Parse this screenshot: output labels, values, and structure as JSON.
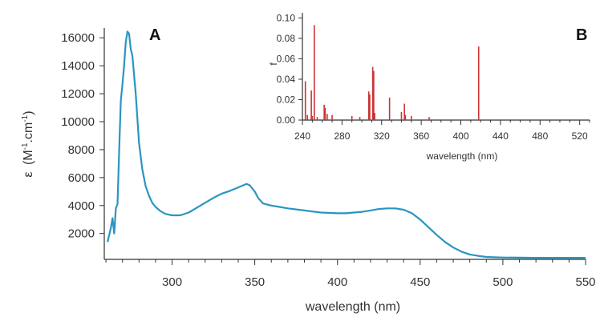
{
  "chart_data": [
    {
      "type": "line",
      "panel_label": "A",
      "xlabel": "wavelength (nm)",
      "ylabel_symbol": "ε",
      "ylabel_unit": "(M",
      "ylabel_sup1": "-1",
      "ylabel_mid": ".cm",
      "ylabel_sup2": "-1",
      "ylabel_end": ")",
      "xlim": [
        259,
        550
      ],
      "ylim": [
        150,
        16700
      ],
      "x_ticks": [
        "300",
        "350",
        "400",
        "450",
        "500",
        "550"
      ],
      "y_ticks": [
        "2000",
        "4000",
        "6000",
        "8000",
        "10000",
        "12000",
        "14000",
        "16000"
      ],
      "color": "#2a95c0",
      "x": [
        261,
        263,
        264,
        265,
        266,
        267,
        268,
        269,
        270,
        271,
        272,
        273,
        274,
        275,
        276,
        278,
        280,
        282,
        284,
        286,
        288,
        290,
        293,
        296,
        300,
        305,
        310,
        315,
        320,
        325,
        330,
        335,
        340,
        343,
        345,
        347,
        350,
        352,
        355,
        360,
        365,
        370,
        380,
        390,
        400,
        405,
        410,
        415,
        420,
        425,
        430,
        435,
        440,
        445,
        450,
        455,
        460,
        465,
        470,
        475,
        480,
        485,
        490,
        495,
        500,
        510,
        520,
        530,
        540,
        550
      ],
      "y": [
        1400,
        2400,
        3100,
        2000,
        3800,
        4100,
        8000,
        11500,
        12700,
        14000,
        15700,
        16450,
        16300,
        15200,
        14700,
        12000,
        8500,
        6600,
        5400,
        4700,
        4200,
        3900,
        3600,
        3400,
        3300,
        3300,
        3500,
        3850,
        4200,
        4550,
        4850,
        5050,
        5300,
        5450,
        5550,
        5450,
        5000,
        4550,
        4150,
        4000,
        3900,
        3800,
        3650,
        3500,
        3450,
        3450,
        3500,
        3550,
        3650,
        3750,
        3800,
        3800,
        3700,
        3450,
        3000,
        2450,
        1900,
        1400,
        1000,
        700,
        500,
        400,
        320,
        300,
        280,
        270,
        260,
        260,
        260,
        260
      ]
    },
    {
      "type": "bar",
      "panel_label": "B",
      "xlabel": "wavelength (nm)",
      "ylabel": "f",
      "xlim": [
        240,
        530
      ],
      "ylim": [
        0,
        0.105
      ],
      "x_ticks": [
        "240",
        "280",
        "320",
        "360",
        "400",
        "440",
        "480",
        "520"
      ],
      "y_ticks": [
        "0.00",
        "0.02",
        "0.04",
        "0.06",
        "0.08",
        "0.10"
      ],
      "color": "#cc3333",
      "x": [
        243,
        245,
        249,
        250,
        252,
        255,
        262,
        263,
        265,
        270,
        290,
        298,
        307,
        308,
        311,
        312,
        313,
        328,
        340,
        343,
        344,
        350,
        368,
        418
      ],
      "y": [
        0.038,
        0.005,
        0.029,
        0.004,
        0.093,
        0.003,
        0.015,
        0.012,
        0.006,
        0.005,
        0.004,
        0.003,
        0.028,
        0.025,
        0.052,
        0.048,
        0.007,
        0.022,
        0.008,
        0.016,
        0.005,
        0.004,
        0.003,
        0.072
      ]
    }
  ]
}
